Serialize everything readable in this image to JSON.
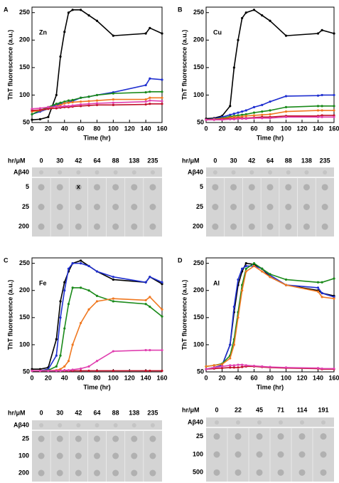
{
  "chart_data": [
    {
      "type": "line",
      "panel": "A",
      "annotation": "Zn",
      "xlabel": "Time (hr)",
      "ylabel": "ThT fluorescence (a.u.)",
      "x": [
        0,
        10,
        20,
        30,
        35,
        40,
        45,
        50,
        60,
        70,
        80,
        100,
        140,
        145,
        160
      ],
      "xlim": [
        0,
        160
      ],
      "xticks": [
        0,
        20,
        40,
        60,
        80,
        100,
        120,
        140,
        160
      ],
      "ylim": [
        50,
        260
      ],
      "yticks": [
        50,
        100,
        150,
        200,
        250
      ],
      "series": [
        {
          "color": "#000000",
          "values": [
            55,
            56,
            60,
            100,
            170,
            215,
            250,
            255,
            255,
            245,
            235,
            208,
            212,
            222,
            212
          ]
        },
        {
          "color": "#1f2fd0",
          "values": [
            65,
            70,
            75,
            82,
            84,
            85,
            87,
            89,
            95,
            97,
            100,
            105,
            118,
            130,
            128
          ]
        },
        {
          "color": "#1a8a1a",
          "values": [
            65,
            72,
            78,
            84,
            86,
            88,
            90,
            91,
            95,
            97,
            100,
            103,
            105,
            106,
            106
          ]
        },
        {
          "color": "#f07820",
          "values": [
            70,
            72,
            75,
            80,
            82,
            85,
            86,
            87,
            88,
            89,
            90,
            92,
            92,
            95,
            95
          ]
        },
        {
          "color": "#c0102a",
          "values": [
            72,
            73,
            75,
            76,
            77,
            78,
            78,
            79,
            80,
            81,
            82,
            82,
            83,
            84,
            84
          ]
        },
        {
          "color": "#e040b0",
          "values": [
            75,
            76,
            78,
            79,
            79,
            80,
            80,
            81,
            83,
            84,
            85,
            86,
            88,
            90,
            89
          ]
        }
      ]
    },
    {
      "type": "line",
      "panel": "B",
      "annotation": "Cu",
      "xlabel": "Time (hr)",
      "ylabel": "ThT fluorescence (a.u.)",
      "x": [
        0,
        10,
        20,
        30,
        35,
        40,
        45,
        50,
        60,
        70,
        80,
        100,
        140,
        145,
        160
      ],
      "xlim": [
        0,
        160
      ],
      "xticks": [
        0,
        20,
        40,
        60,
        80,
        100,
        120,
        140,
        160
      ],
      "ylim": [
        50,
        260
      ],
      "yticks": [
        50,
        100,
        150,
        200,
        250
      ],
      "series": [
        {
          "color": "#000000",
          "values": [
            57,
            58,
            62,
            80,
            150,
            200,
            240,
            250,
            255,
            245,
            235,
            208,
            212,
            218,
            212
          ]
        },
        {
          "color": "#1f2fd0",
          "values": [
            55,
            57,
            60,
            64,
            66,
            68,
            70,
            72,
            78,
            82,
            88,
            98,
            99,
            100,
            100
          ]
        },
        {
          "color": "#1a8a1a",
          "values": [
            55,
            56,
            58,
            61,
            62,
            63,
            64,
            65,
            68,
            70,
            72,
            78,
            80,
            80,
            80
          ]
        },
        {
          "color": "#f07820",
          "values": [
            55,
            56,
            57,
            59,
            60,
            60,
            61,
            62,
            63,
            64,
            65,
            70,
            72,
            72,
            72
          ]
        },
        {
          "color": "#c0102a",
          "values": [
            55,
            55,
            56,
            57,
            57,
            58,
            58,
            58,
            59,
            60,
            60,
            62,
            62,
            63,
            63
          ]
        },
        {
          "color": "#e040b0",
          "values": [
            55,
            55,
            55,
            56,
            56,
            57,
            57,
            57,
            58,
            58,
            58,
            60,
            60,
            60,
            60
          ]
        }
      ]
    },
    {
      "type": "line",
      "panel": "C",
      "annotation": "Fe",
      "xlabel": "Time (hr)",
      "ylabel": "ThT fluorescence (a.u.)",
      "x": [
        0,
        10,
        20,
        30,
        35,
        40,
        45,
        50,
        60,
        70,
        80,
        100,
        140,
        145,
        160
      ],
      "xlim": [
        0,
        160
      ],
      "xticks": [
        0,
        20,
        40,
        60,
        80,
        100,
        120,
        140,
        160
      ],
      "ylim": [
        50,
        260
      ],
      "yticks": [
        50,
        100,
        150,
        200,
        250
      ],
      "series": [
        {
          "color": "#000000",
          "values": [
            55,
            55,
            58,
            110,
            180,
            215,
            235,
            250,
            255,
            245,
            235,
            220,
            215,
            225,
            212
          ]
        },
        {
          "color": "#1f2fd0",
          "values": [
            52,
            52,
            55,
            80,
            150,
            200,
            240,
            250,
            250,
            245,
            235,
            225,
            215,
            225,
            215
          ]
        },
        {
          "color": "#1a8a1a",
          "values": [
            52,
            52,
            53,
            60,
            80,
            130,
            175,
            205,
            205,
            200,
            190,
            180,
            175,
            170,
            152
          ]
        },
        {
          "color": "#f07820",
          "values": [
            52,
            52,
            52,
            53,
            55,
            60,
            70,
            100,
            140,
            165,
            180,
            185,
            182,
            188,
            165
          ]
        },
        {
          "color": "#c0102a",
          "values": [
            52,
            52,
            52,
            52,
            52,
            52,
            52,
            52,
            52,
            52,
            52,
            52,
            52,
            52,
            52
          ]
        },
        {
          "color": "#e040b0",
          "values": [
            52,
            52,
            52,
            52,
            52,
            53,
            53,
            54,
            56,
            60,
            70,
            88,
            90,
            90,
            90
          ]
        }
      ]
    },
    {
      "type": "line",
      "panel": "D",
      "annotation": "Al",
      "xlabel": "Time (hr)",
      "ylabel": "ThT fluorescence (a.u.)",
      "x": [
        0,
        10,
        20,
        30,
        35,
        40,
        45,
        50,
        60,
        70,
        80,
        100,
        140,
        145,
        160
      ],
      "xlim": [
        0,
        160
      ],
      "xticks": [
        0,
        20,
        40,
        60,
        80,
        100,
        120,
        140,
        160
      ],
      "ylim": [
        50,
        260
      ],
      "yticks": [
        50,
        100,
        150,
        200,
        250
      ],
      "series": [
        {
          "color": "#000000",
          "values": [
            55,
            58,
            62,
            100,
            160,
            210,
            235,
            250,
            248,
            240,
            225,
            210,
            200,
            195,
            190
          ]
        },
        {
          "color": "#1f2fd0",
          "values": [
            55,
            58,
            62,
            100,
            170,
            220,
            240,
            245,
            245,
            240,
            228,
            210,
            205,
            195,
            188
          ]
        },
        {
          "color": "#1a8a1a",
          "values": [
            60,
            62,
            65,
            80,
            110,
            160,
            210,
            240,
            250,
            240,
            230,
            220,
            215,
            215,
            222
          ]
        },
        {
          "color": "#f07820",
          "values": [
            60,
            62,
            64,
            75,
            100,
            150,
            200,
            235,
            245,
            235,
            225,
            210,
            198,
            188,
            185
          ]
        },
        {
          "color": "#c0102a",
          "values": [
            55,
            56,
            57,
            58,
            58,
            58,
            59,
            60,
            60,
            59,
            58,
            57,
            56,
            55,
            55
          ]
        },
        {
          "color": "#e040b0",
          "values": [
            55,
            58,
            60,
            62,
            62,
            63,
            63,
            62,
            61,
            60,
            59,
            58,
            57,
            56,
            56
          ]
        }
      ]
    }
  ],
  "blots": [
    {
      "corner": "hr/μM",
      "columns": [
        "0",
        "30",
        "42",
        "64",
        "88",
        "138",
        "235"
      ],
      "rows": [
        "Aβ40",
        "5",
        "25",
        "200"
      ],
      "mark": "x"
    },
    {
      "corner": "hr/μM",
      "columns": [
        "0",
        "30",
        "42",
        "64",
        "88",
        "138",
        "235"
      ],
      "rows": [
        "Aβ40",
        "5",
        "25",
        "200"
      ]
    },
    {
      "corner": "hr/μM",
      "columns": [
        "0",
        "30",
        "42",
        "64",
        "88",
        "138",
        "235"
      ],
      "rows": [
        "Aβ40",
        "25",
        "100",
        "200"
      ]
    },
    {
      "corner": "hr/μM",
      "columns": [
        "0",
        "22",
        "45",
        "71",
        "114",
        "191"
      ],
      "rows": [
        "Aβ40",
        "25",
        "100",
        "500"
      ]
    }
  ]
}
